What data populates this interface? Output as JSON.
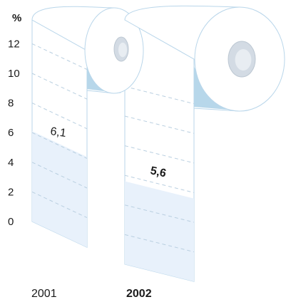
{
  "chart_data": {
    "type": "bar",
    "unit_label": "%",
    "categories": [
      "2001",
      "2002"
    ],
    "values": [
      6.1,
      5.6
    ],
    "value_labels": [
      "6,1",
      "5,6"
    ],
    "y_ticks": [
      "0",
      "2",
      "4",
      "6",
      "8",
      "10",
      "12"
    ],
    "ylim": [
      0,
      12
    ],
    "grid": true,
    "highlight_category": "2002"
  }
}
